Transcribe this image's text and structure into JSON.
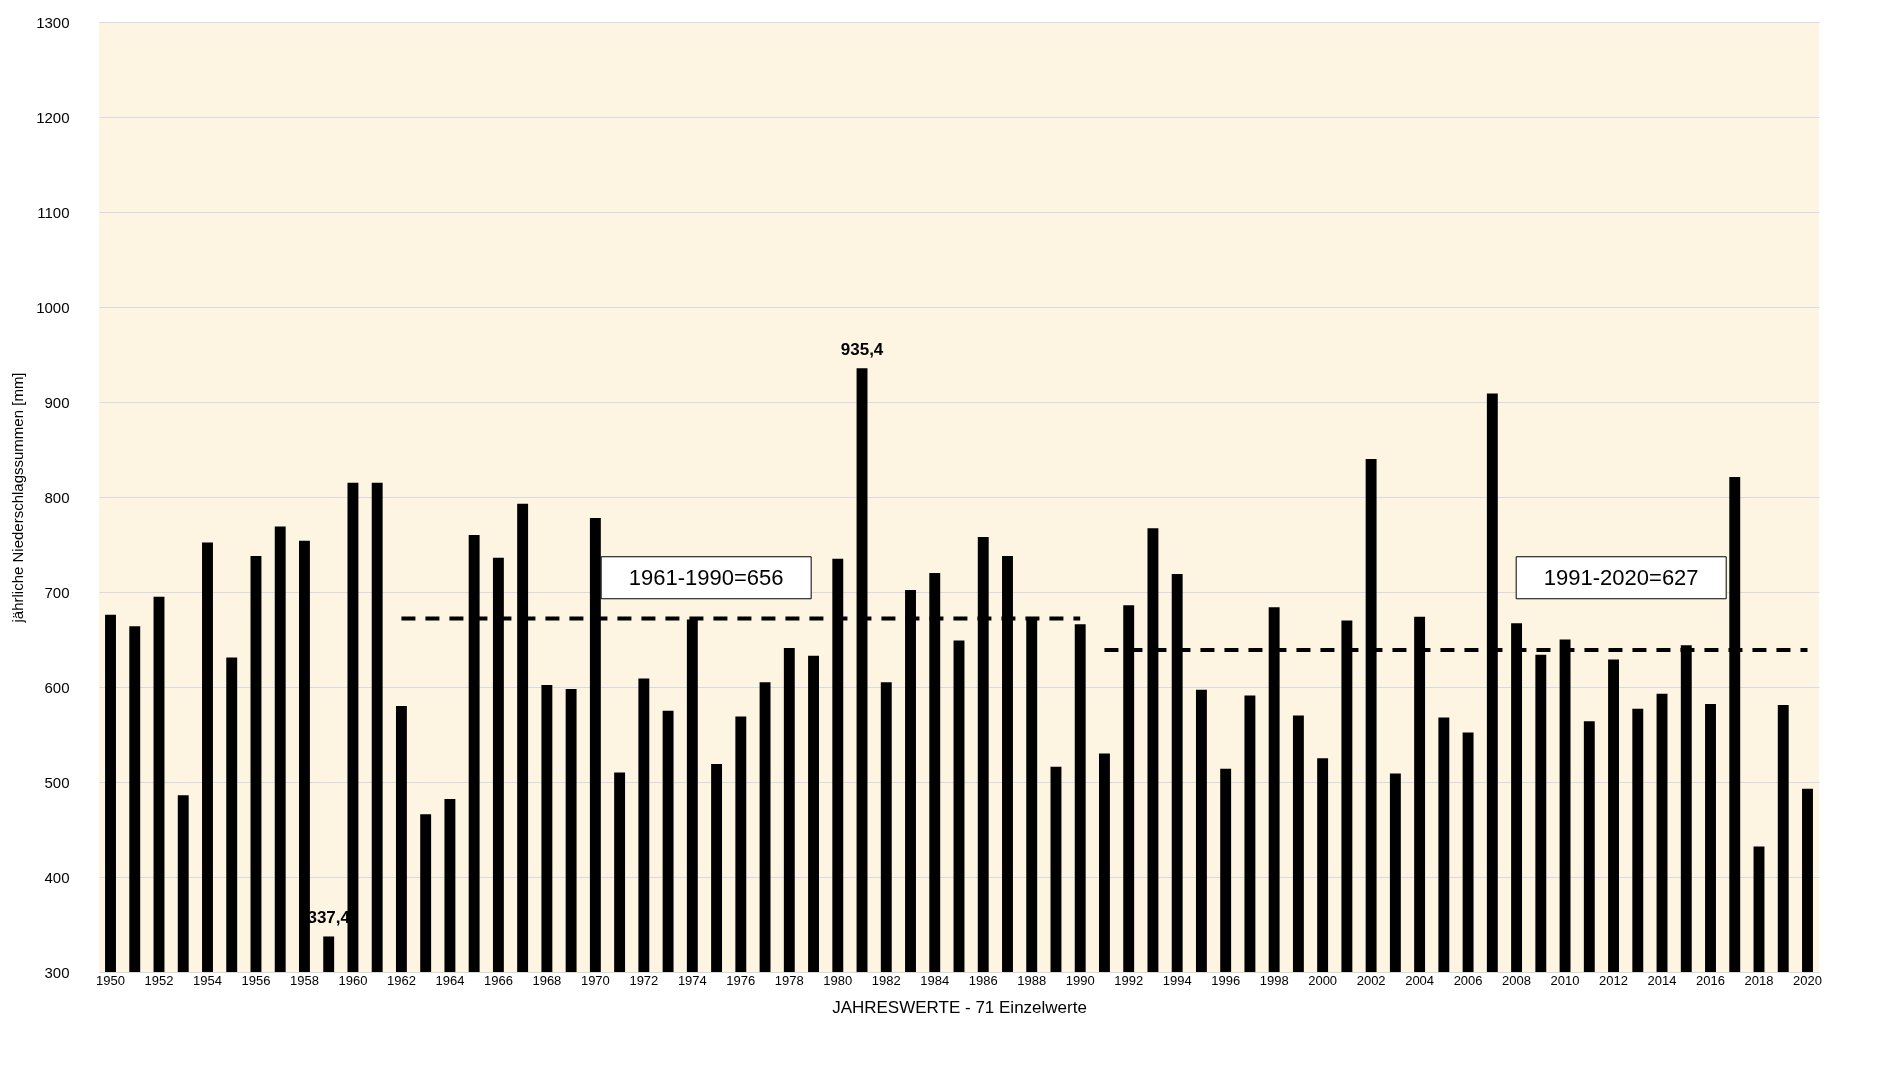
{
  "chart_data": {
    "type": "bar",
    "xlabel": "JAHRESWERTE  -  71  Einzelwerte",
    "ylabel": "jährliche  Niederschlagssummen  [mm]",
    "categories": [
      "1950",
      null,
      "1952",
      null,
      "1954",
      null,
      "1956",
      null,
      "1958",
      null,
      "1960",
      null,
      "1962",
      null,
      "1964",
      null,
      "1966",
      null,
      "1968",
      null,
      "1970",
      null,
      "1972",
      null,
      "1974",
      null,
      "1976",
      null,
      "1978",
      null,
      "1980",
      null,
      "1982",
      null,
      "1984",
      null,
      "1986",
      null,
      "1988",
      null,
      "1990",
      null,
      "1992",
      null,
      "1994",
      null,
      "1996",
      null,
      "1998",
      null,
      "2000",
      null,
      "2002",
      null,
      "2004",
      null,
      "2006",
      null,
      "2008",
      null,
      "2010",
      null,
      "2012",
      null,
      "2014",
      null,
      "2016",
      null,
      "2018",
      null,
      "2020"
    ],
    "series": [
      {
        "color": "#000000",
        "values": [
          676,
          664,
          695,
          486,
          752,
          631,
          738,
          769,
          754,
          337.4,
          815,
          815,
          580,
          466,
          482,
          760,
          736,
          793,
          602,
          598,
          778,
          510,
          609,
          575,
          671,
          519,
          569,
          605,
          641,
          633,
          735,
          935.4,
          605,
          702,
          720,
          649,
          758,
          738,
          671,
          516,
          666,
          530,
          686,
          767,
          719,
          597,
          514,
          591,
          684,
          570,
          525,
          670,
          840,
          509,
          674,
          568,
          552,
          909,
          667,
          634,
          650,
          564,
          629,
          577,
          593,
          644,
          582,
          821,
          432,
          581,
          493
        ],
        "value_labels": [
          null,
          null,
          null,
          null,
          null,
          null,
          null,
          null,
          null,
          "337,4",
          null,
          null,
          null,
          null,
          null,
          null,
          null,
          null,
          null,
          null,
          null,
          null,
          null,
          null,
          null,
          null,
          null,
          null,
          null,
          null,
          null,
          "935,4",
          null,
          null,
          null,
          null,
          null,
          null,
          null,
          null,
          null,
          null,
          null,
          null,
          null,
          null,
          null,
          null,
          null,
          null,
          null,
          null,
          null,
          null,
          null,
          null,
          null,
          null,
          null,
          null,
          null,
          null,
          null,
          null,
          null,
          null,
          null,
          null,
          null,
          null,
          null
        ]
      },
      {
        "type": "line",
        "color": "#000000",
        "line_style": "dashed",
        "values": [
          null,
          null,
          null,
          null,
          null,
          null,
          null,
          null,
          null,
          null,
          null,
          null,
          672,
          672,
          672,
          672,
          672,
          672,
          672,
          672,
          672,
          672,
          672,
          672,
          672,
          672,
          672,
          672,
          672,
          672,
          672,
          672,
          672,
          672,
          672,
          672,
          672,
          672,
          672,
          672,
          672,
          null,
          null,
          null,
          null,
          null,
          null,
          null,
          null,
          null,
          null,
          null,
          null,
          null,
          null,
          null,
          null,
          null,
          null,
          null,
          null,
          null,
          null,
          null,
          null,
          null,
          null,
          null,
          null,
          null,
          null
        ]
      },
      {
        "type": "line",
        "color": "#000000",
        "line_style": "dashed",
        "values": [
          null,
          null,
          null,
          null,
          null,
          null,
          null,
          null,
          null,
          null,
          null,
          null,
          null,
          null,
          null,
          null,
          null,
          null,
          null,
          null,
          null,
          null,
          null,
          null,
          null,
          null,
          null,
          null,
          null,
          null,
          null,
          null,
          null,
          null,
          null,
          null,
          null,
          null,
          null,
          null,
          null,
          639,
          639,
          639,
          639,
          639,
          639,
          639,
          639,
          639,
          639,
          639,
          639,
          639,
          639,
          639,
          639,
          639,
          639,
          639,
          639,
          639,
          639,
          639,
          639,
          639,
          639,
          639,
          639,
          639,
          639
        ]
      }
    ],
    "annotations": [
      "1961-1990=656",
      "1991-2020=627"
    ],
    "ylim": [
      300,
      1300
    ],
    "yticks": [
      300,
      400,
      500,
      600,
      700,
      800,
      900,
      1000,
      1100,
      1200,
      1300
    ],
    "grid": "y"
  }
}
